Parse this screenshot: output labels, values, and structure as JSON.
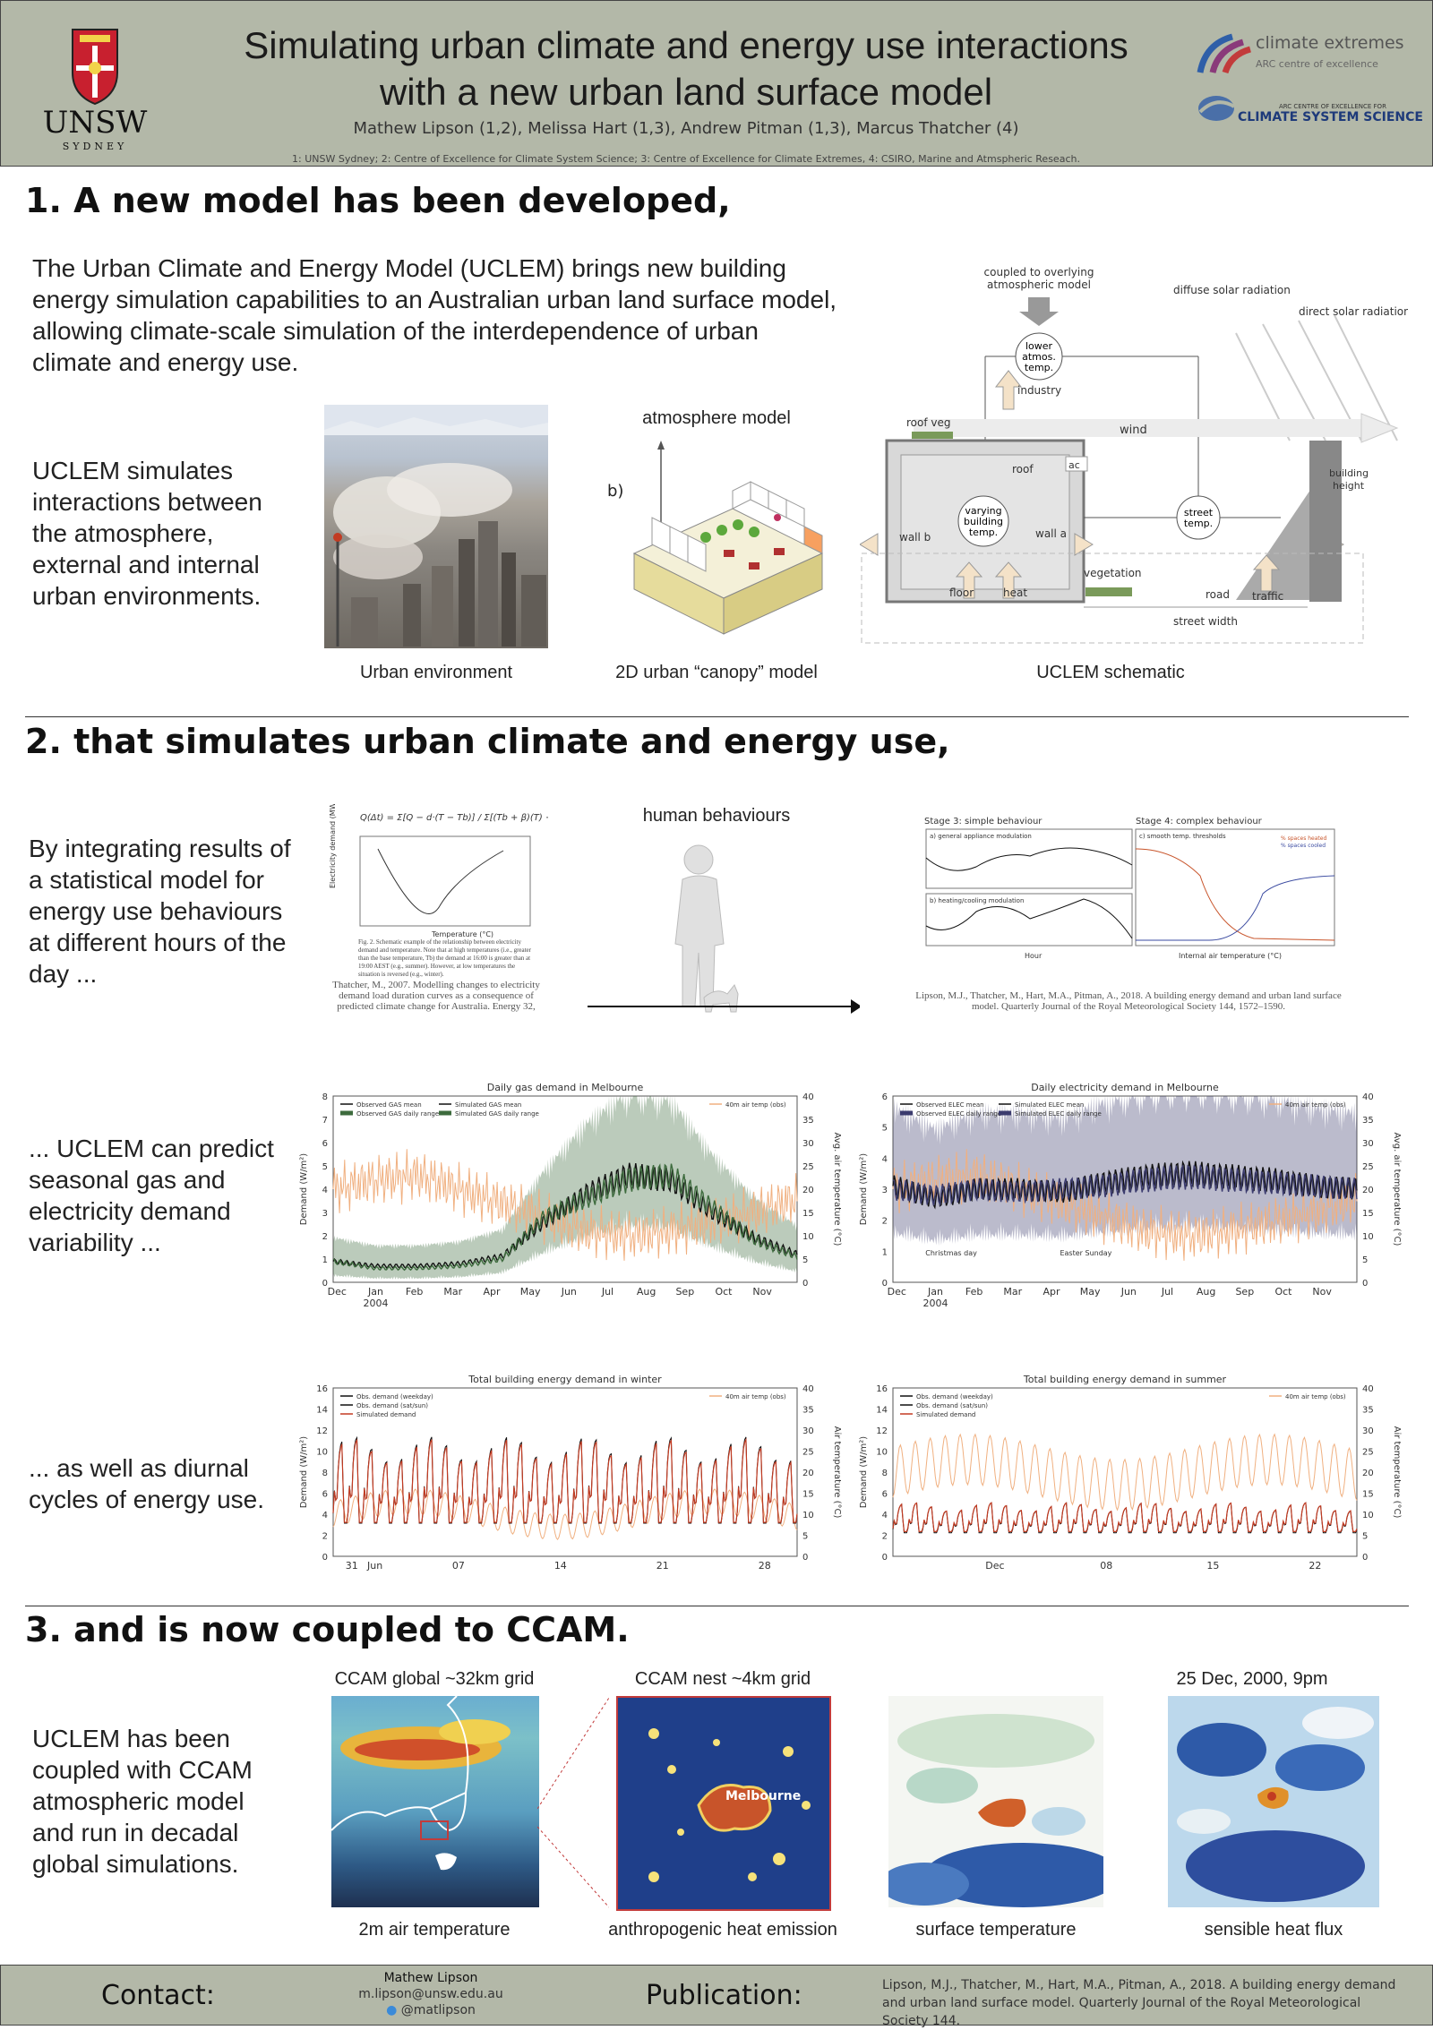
{
  "header": {
    "title_line1": "Simulating urban climate and energy use interactions",
    "title_line2": "with a new urban land surface model",
    "authors": "Mathew Lipson (1,2), Melissa Hart (1,3), Andrew Pitman (1,3), Marcus Thatcher (4)",
    "affiliations": "1: UNSW Sydney;  2: Centre of Excellence for Climate System Science; 3: Centre of Excellence for Climate Extremes, 4: CSIRO, Marine and Atmspheric Reseach.",
    "unsw_logo": "UNSW",
    "unsw_sub": "SYDNEY",
    "logo1_title": "climate extremes",
    "logo1_sub": "ARC centre of excellence",
    "logo2_small": "ARC CENTRE OF EXCELLENCE FOR",
    "logo2_title": "CLIMATE SYSTEM SCIENCE"
  },
  "section1": {
    "title": "1. A new model has been developed,",
    "intro": "The Urban Climate and Energy Model (UCLEM) brings new building energy simulation capabilities to an Australian urban land surface model, allowing climate-scale simulation of the interdependence of urban climate and energy use.",
    "side_text": "UCLEM simulates interactions between the atmosphere, external and internal urban environments.",
    "cap_photo": "Urban environment",
    "cap_canopy": "2D urban “canopy” model",
    "cap_schematic": "UCLEM schematic",
    "atmos_label": "atmosphere model",
    "b_label": "b)",
    "schematic": {
      "coupled": "coupled to overlying atmospheric model",
      "diffuse": "diffuse solar radiation",
      "direct": "direct solar radiation",
      "lower_atmos": "lower atmos. temp.",
      "industry": "industry",
      "roof_veg": "roof veg",
      "wind": "wind",
      "roof": "roof",
      "ac": "ac",
      "varying": "varying building temp.",
      "wall_b": "wall b",
      "wall_a": "wall a",
      "street_temp": "street temp.",
      "building_height": "building height",
      "vegetation": "vegetation",
      "floor": "floor",
      "heat": "heat",
      "road": "road",
      "traffic": "traffic",
      "street_width": "street width"
    }
  },
  "section2": {
    "title": "2. that simulates urban climate and energy use,",
    "text1": "By integrating results of a statistical model for energy use behaviours at different hours of the day ...",
    "text2": "... UCLEM can predict seasonal gas and electricity demand variability ...",
    "text3": "... as well as diurnal cycles of energy use.",
    "human_label": "human behaviours",
    "thatcher_ref": "Thatcher, M., 2007. Modelling changes to electricity demand load duration curves as a consequence of predicted climate change for Australia. Energy 32,",
    "lipson_ref": "Lipson, M.J., Thatcher, M., Hart, M.A., Pitman, A., 2018. A building energy demand and urban land surface model. Quarterly Journal of the Royal Meteorological Society 144, 1572–1590.",
    "stage3": "Stage 3: simple behaviour",
    "stage4": "Stage 4: complex behaviour",
    "panel_a": "a) general appliance modulation",
    "panel_b": "b) heating/cooling modulation",
    "panel_c": "c) smooth temp. thresholds",
    "hour_label": "Hour",
    "internal_label": "Internal air temperature (°C)",
    "spaces_heated": "% spaces heated",
    "spaces_cooled": "% spaces cooled",
    "fig_caption": "Fig. 2. Schematic example of the relationship between electricity demand and temperature. Note that at high temperatures (i.e., greater than the base temperature, Tb) the demand at 16:00 is greater than at 19:00 AEST (e.g., summer). However, at low temperatures the situation is reversed (e.g., winter)."
  },
  "chart_data": [
    {
      "type": "line",
      "title": "Daily gas demand in Melbourne",
      "ylabel": "Demand (W/m²)",
      "y2label": "Avg. air temperature (°C)",
      "ylim": [
        0,
        8
      ],
      "y2lim": [
        0,
        40
      ],
      "categories": [
        "Dec",
        "Jan",
        "Feb",
        "Mar",
        "Apr",
        "May",
        "Jun",
        "Jul",
        "Aug",
        "Sep",
        "Oct",
        "Nov"
      ],
      "year_label": "2004",
      "legend": [
        "Observed GAS mean",
        "Simulated GAS mean",
        "Observed GAS daily range",
        "Simulated GAS daily range"
      ],
      "legend2": "40m air temp (obs)",
      "series": [
        {
          "name": "Simulated GAS mean",
          "values": [
            0.9,
            0.6,
            0.6,
            0.7,
            1.0,
            2.8,
            3.6,
            4.4,
            4.6,
            3.2,
            1.8,
            1.1
          ]
        },
        {
          "name": "Observed GAS mean",
          "values": [
            0.9,
            0.7,
            0.7,
            0.8,
            1.1,
            2.6,
            3.8,
            4.6,
            4.4,
            3.0,
            1.9,
            1.2
          ]
        },
        {
          "name": "40m air temp (obs)",
          "values": [
            20,
            22,
            23,
            20,
            17,
            14,
            11,
            10,
            11,
            13,
            15,
            18
          ]
        }
      ]
    },
    {
      "type": "line",
      "title": "Daily electricity demand in Melbourne",
      "ylabel": "Demand (W/m²)",
      "y2label": "Avg. air temperature (°C)",
      "ylim": [
        0,
        6
      ],
      "y2lim": [
        0,
        40
      ],
      "categories": [
        "Dec",
        "Jan",
        "Feb",
        "Mar",
        "Apr",
        "May",
        "Jun",
        "Jul",
        "Aug",
        "Sep",
        "Oct",
        "Nov"
      ],
      "year_label": "2004",
      "legend": [
        "Observed ELEC mean",
        "Simulated ELEC mean",
        "Observed ELEC daily range",
        "Simulated ELEC daily range"
      ],
      "legend2": "40m air temp (obs)",
      "annotations": [
        "Christmas day",
        "Easter Sunday"
      ],
      "series": [
        {
          "name": "Simulated ELEC mean",
          "values": [
            3.0,
            2.8,
            3.0,
            2.9,
            3.0,
            3.1,
            3.3,
            3.4,
            3.3,
            3.2,
            3.1,
            3.0
          ]
        },
        {
          "name": "Observed ELEC mean",
          "values": [
            3.1,
            2.7,
            3.0,
            3.0,
            2.9,
            3.2,
            3.4,
            3.5,
            3.4,
            3.3,
            3.1,
            3.0
          ]
        },
        {
          "name": "40m air temp (obs)",
          "values": [
            20,
            22,
            23,
            20,
            17,
            14,
            11,
            10,
            11,
            13,
            15,
            18
          ]
        }
      ]
    },
    {
      "type": "line",
      "title": "Total building energy demand in winter",
      "ylabel": "Demand (W/m²)",
      "y2label": "Air temperature (°C)",
      "ylim": [
        0,
        16
      ],
      "y2lim": [
        0,
        40
      ],
      "tick_labels": [
        "31",
        "Jun",
        "07",
        "14",
        "21",
        "28"
      ],
      "legend": [
        "Obs. demand (weekday)",
        "Obs. demand (sat/sun)",
        "Simulated demand"
      ],
      "legend2": "40m air temp (obs)",
      "diurnal": {
        "days": 31,
        "base": 4.5,
        "peak": 10.5
      }
    },
    {
      "type": "line",
      "title": "Total building energy demand in summer",
      "ylabel": "Demand (W/m²)",
      "y2label": "Air temperature (°C)",
      "ylim": [
        0,
        16
      ],
      "y2lim": [
        0,
        40
      ],
      "tick_labels": [
        "Dec",
        "08",
        "15",
        "22"
      ],
      "legend": [
        "Obs. demand (weekday)",
        "Obs. demand (sat/sun)",
        "Simulated demand"
      ],
      "legend2": "40m air temp (obs)",
      "diurnal": {
        "days": 31,
        "base": 3.2,
        "peak": 4.8
      }
    }
  ],
  "section3": {
    "title": "3. and is now coupled to CCAM.",
    "text": "UCLEM has been coupled with CCAM atmospheric model and run in decadal global simulations.",
    "map1_title": "CCAM global ~32km grid",
    "map2_title": "CCAM nest ~4km grid",
    "map4_title": "25 Dec, 2000, 9pm",
    "cap1": "2m air temperature",
    "cap2": "anthropogenic heat emission",
    "cap3": "surface temperature",
    "cap4": "sensible heat flux",
    "melbourne": "Melbourne"
  },
  "footer": {
    "contact_label": "Contact:",
    "name": "Mathew Lipson",
    "email": "m.lipson@unsw.edu.au",
    "twitter": "@matlipson",
    "publication_label": "Publication:",
    "publication": "Lipson, M.J., Thatcher, M., Hart, M.A., Pitman, A., 2018. A building energy demand and urban land surface model. Quarterly Journal of the Royal Meteorological Society 144."
  },
  "colors": {
    "header_bg": "#b3b8a8",
    "gas": "#3d6b3d",
    "elec": "#3b3b6e",
    "temp": "#f0b080",
    "sim": "#c23b22"
  }
}
